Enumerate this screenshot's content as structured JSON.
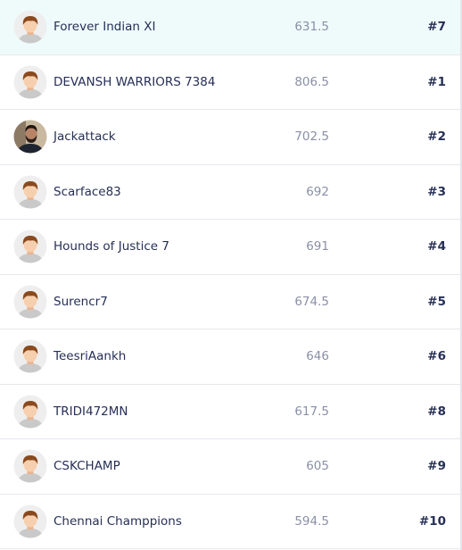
{
  "leaderboard": {
    "rows": [
      {
        "name": "Forever Indian XI",
        "points": 631.5,
        "rank": "#7",
        "highlighted": true,
        "avatar": "default"
      },
      {
        "name": "DEVANSH WARRIORS 7384",
        "points": 806.5,
        "rank": "#1",
        "highlighted": false,
        "avatar": "default"
      },
      {
        "name": "Jackattack",
        "points": 702.5,
        "rank": "#2",
        "highlighted": false,
        "avatar": "photo"
      },
      {
        "name": "Scarface83",
        "points": 692,
        "rank": "#3",
        "highlighted": false,
        "avatar": "default"
      },
      {
        "name": "Hounds of Justice 7",
        "points": 691,
        "rank": "#4",
        "highlighted": false,
        "avatar": "default"
      },
      {
        "name": "Surencr7",
        "points": 674.5,
        "rank": "#5",
        "highlighted": false,
        "avatar": "default"
      },
      {
        "name": "TeesriAankh",
        "points": 646,
        "rank": "#6",
        "highlighted": false,
        "avatar": "default"
      },
      {
        "name": "TRIDI472MN",
        "points": 617.5,
        "rank": "#8",
        "highlighted": false,
        "avatar": "default"
      },
      {
        "name": "CSKCHAMP",
        "points": 605,
        "rank": "#9",
        "highlighted": false,
        "avatar": "default"
      },
      {
        "name": "Chennai Champpions",
        "points": 594.5,
        "rank": "#10",
        "highlighted": false,
        "avatar": "default"
      }
    ]
  }
}
